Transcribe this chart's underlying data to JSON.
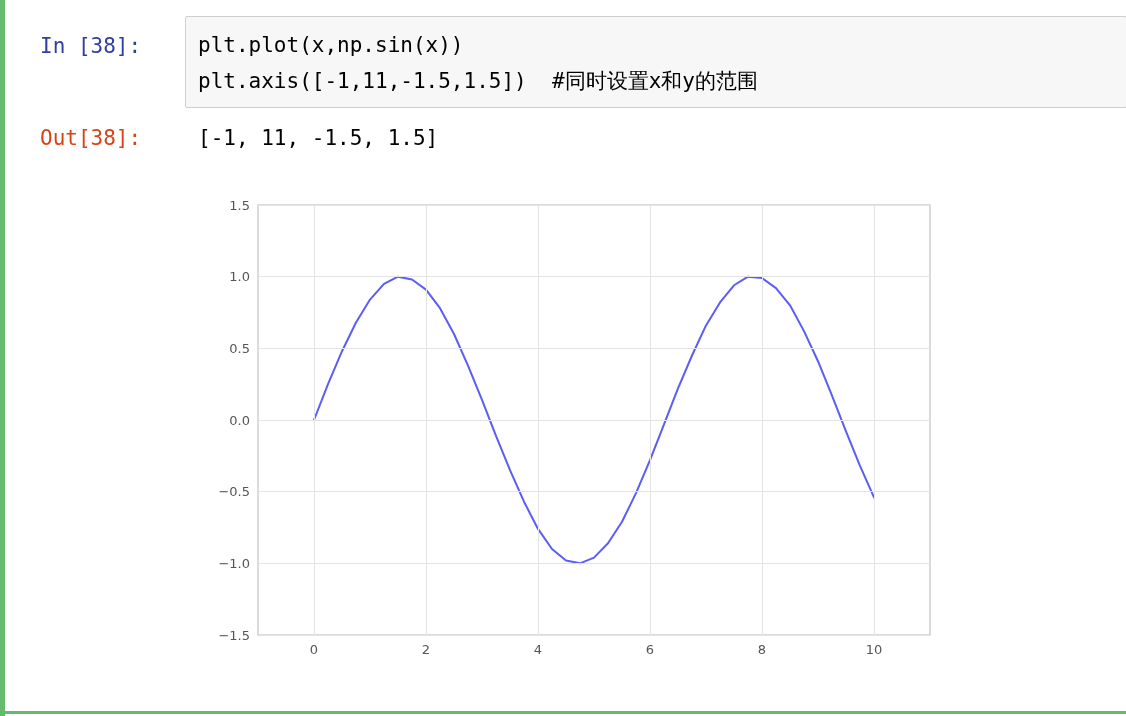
{
  "chart_data": {
    "type": "line",
    "annotations": [
      "In [38]:",
      "plt.plot(x,np.sin(x))",
      "plt.axis([-1,11,-1.5,1.5])  #同时设置x和y的范围",
      "Out[38]:",
      "[-1, 11, -1.5, 1.5]"
    ],
    "x": [
      0,
      0.25,
      0.5,
      0.75,
      1,
      1.25,
      1.5,
      1.75,
      2,
      2.25,
      2.5,
      2.75,
      3,
      3.25,
      3.5,
      3.75,
      4,
      4.25,
      4.5,
      4.75,
      5,
      5.25,
      5.5,
      5.75,
      6,
      6.25,
      6.5,
      6.75,
      7,
      7.25,
      7.5,
      7.75,
      8,
      8.25,
      8.5,
      8.75,
      9,
      9.25,
      9.5,
      9.75,
      10
    ],
    "series": [
      {
        "color": "#5c5cf7",
        "values": [
          0,
          0.25,
          0.48,
          0.68,
          0.84,
          0.95,
          1.0,
          0.98,
          0.91,
          0.78,
          0.6,
          0.38,
          0.14,
          -0.11,
          -0.35,
          -0.57,
          -0.76,
          -0.9,
          -0.98,
          -1.0,
          -0.96,
          -0.86,
          -0.71,
          -0.51,
          -0.28,
          -0.03,
          0.22,
          0.45,
          0.66,
          0.82,
          0.94,
          1.0,
          0.99,
          0.92,
          0.8,
          0.62,
          0.41,
          0.17,
          -0.08,
          -0.32,
          -0.54
        ]
      }
    ],
    "xlim": [
      -1,
      11
    ],
    "xticks": [
      0,
      2,
      4,
      6,
      8,
      10
    ],
    "ylim": [
      -1.5,
      1.5
    ],
    "yticks": [
      {
        "value": -1.5,
        "label": "−1.5"
      },
      {
        "value": -1.0,
        "label": "−1.0"
      },
      {
        "value": -0.5,
        "label": "−0.5"
      },
      {
        "value": 0,
        "label": "0.0"
      },
      {
        "value": 0.5,
        "label": "0.5"
      },
      {
        "value": 1.0,
        "label": "1.0"
      },
      {
        "value": 1.5,
        "label": "1.5"
      }
    ],
    "grid": true,
    "marker": "none",
    "line_style": "solid"
  }
}
